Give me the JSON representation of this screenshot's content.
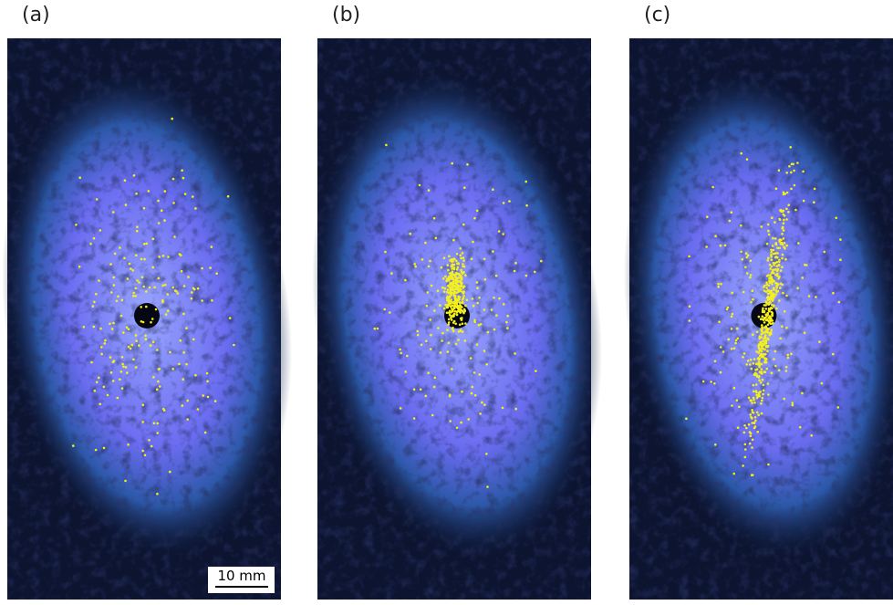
{
  "panels": [
    {
      "label": "(a)"
    },
    {
      "label": "(b)"
    },
    {
      "label": "(c)"
    }
  ],
  "scale_bar": "10 mm"
}
